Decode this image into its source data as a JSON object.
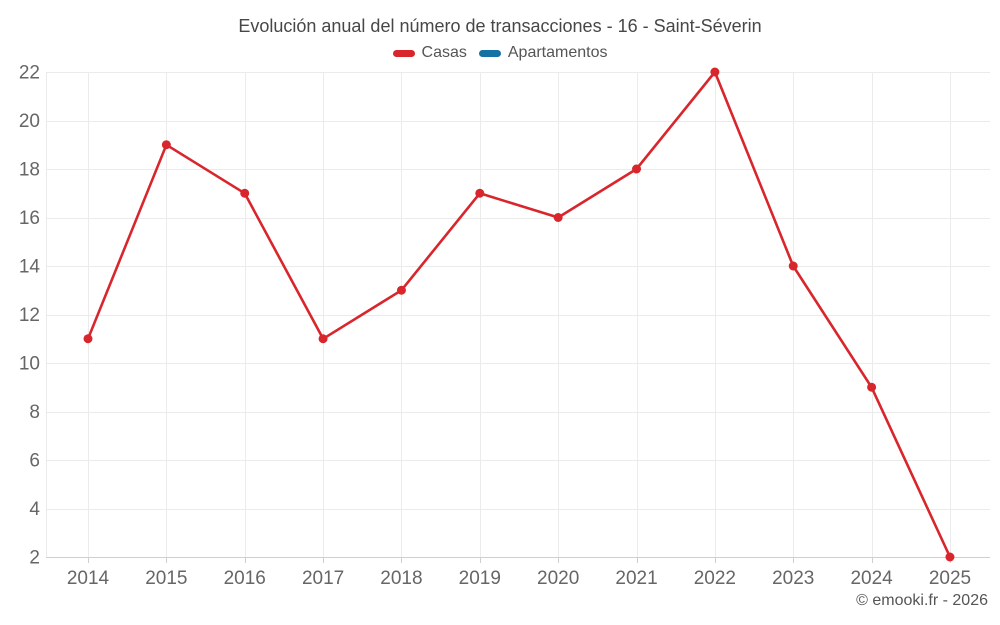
{
  "chart_data": {
    "type": "line",
    "title": "Evolución anual del número de transacciones - 16 - Saint-Séverin",
    "categories": [
      "2014",
      "2015",
      "2016",
      "2017",
      "2018",
      "2019",
      "2020",
      "2021",
      "2022",
      "2023",
      "2024",
      "2025"
    ],
    "series": [
      {
        "name": "Casas",
        "color": "#d8262c",
        "values": [
          11,
          19,
          17,
          11,
          13,
          17,
          16,
          18,
          22,
          14,
          9,
          2
        ]
      },
      {
        "name": "Apartamentos",
        "color": "#1672a5",
        "values": []
      }
    ],
    "ylim": [
      2,
      22
    ],
    "y_ticks": [
      2,
      4,
      6,
      8,
      10,
      12,
      14,
      16,
      18,
      20,
      22
    ],
    "xlabel": "",
    "ylabel": "",
    "grid": true,
    "legend_position": "top",
    "marker": "circle",
    "watermark": "© emooki.fr - 2026"
  },
  "colors": {
    "casas": "#d8262c",
    "apartamentos": "#1672a5",
    "gridline": "#ebebeb",
    "axis_line": "#cfcfcf",
    "axis_label": "#666666",
    "title_text": "#474747",
    "legend_text": "#555555",
    "watermark_text": "#555555"
  }
}
